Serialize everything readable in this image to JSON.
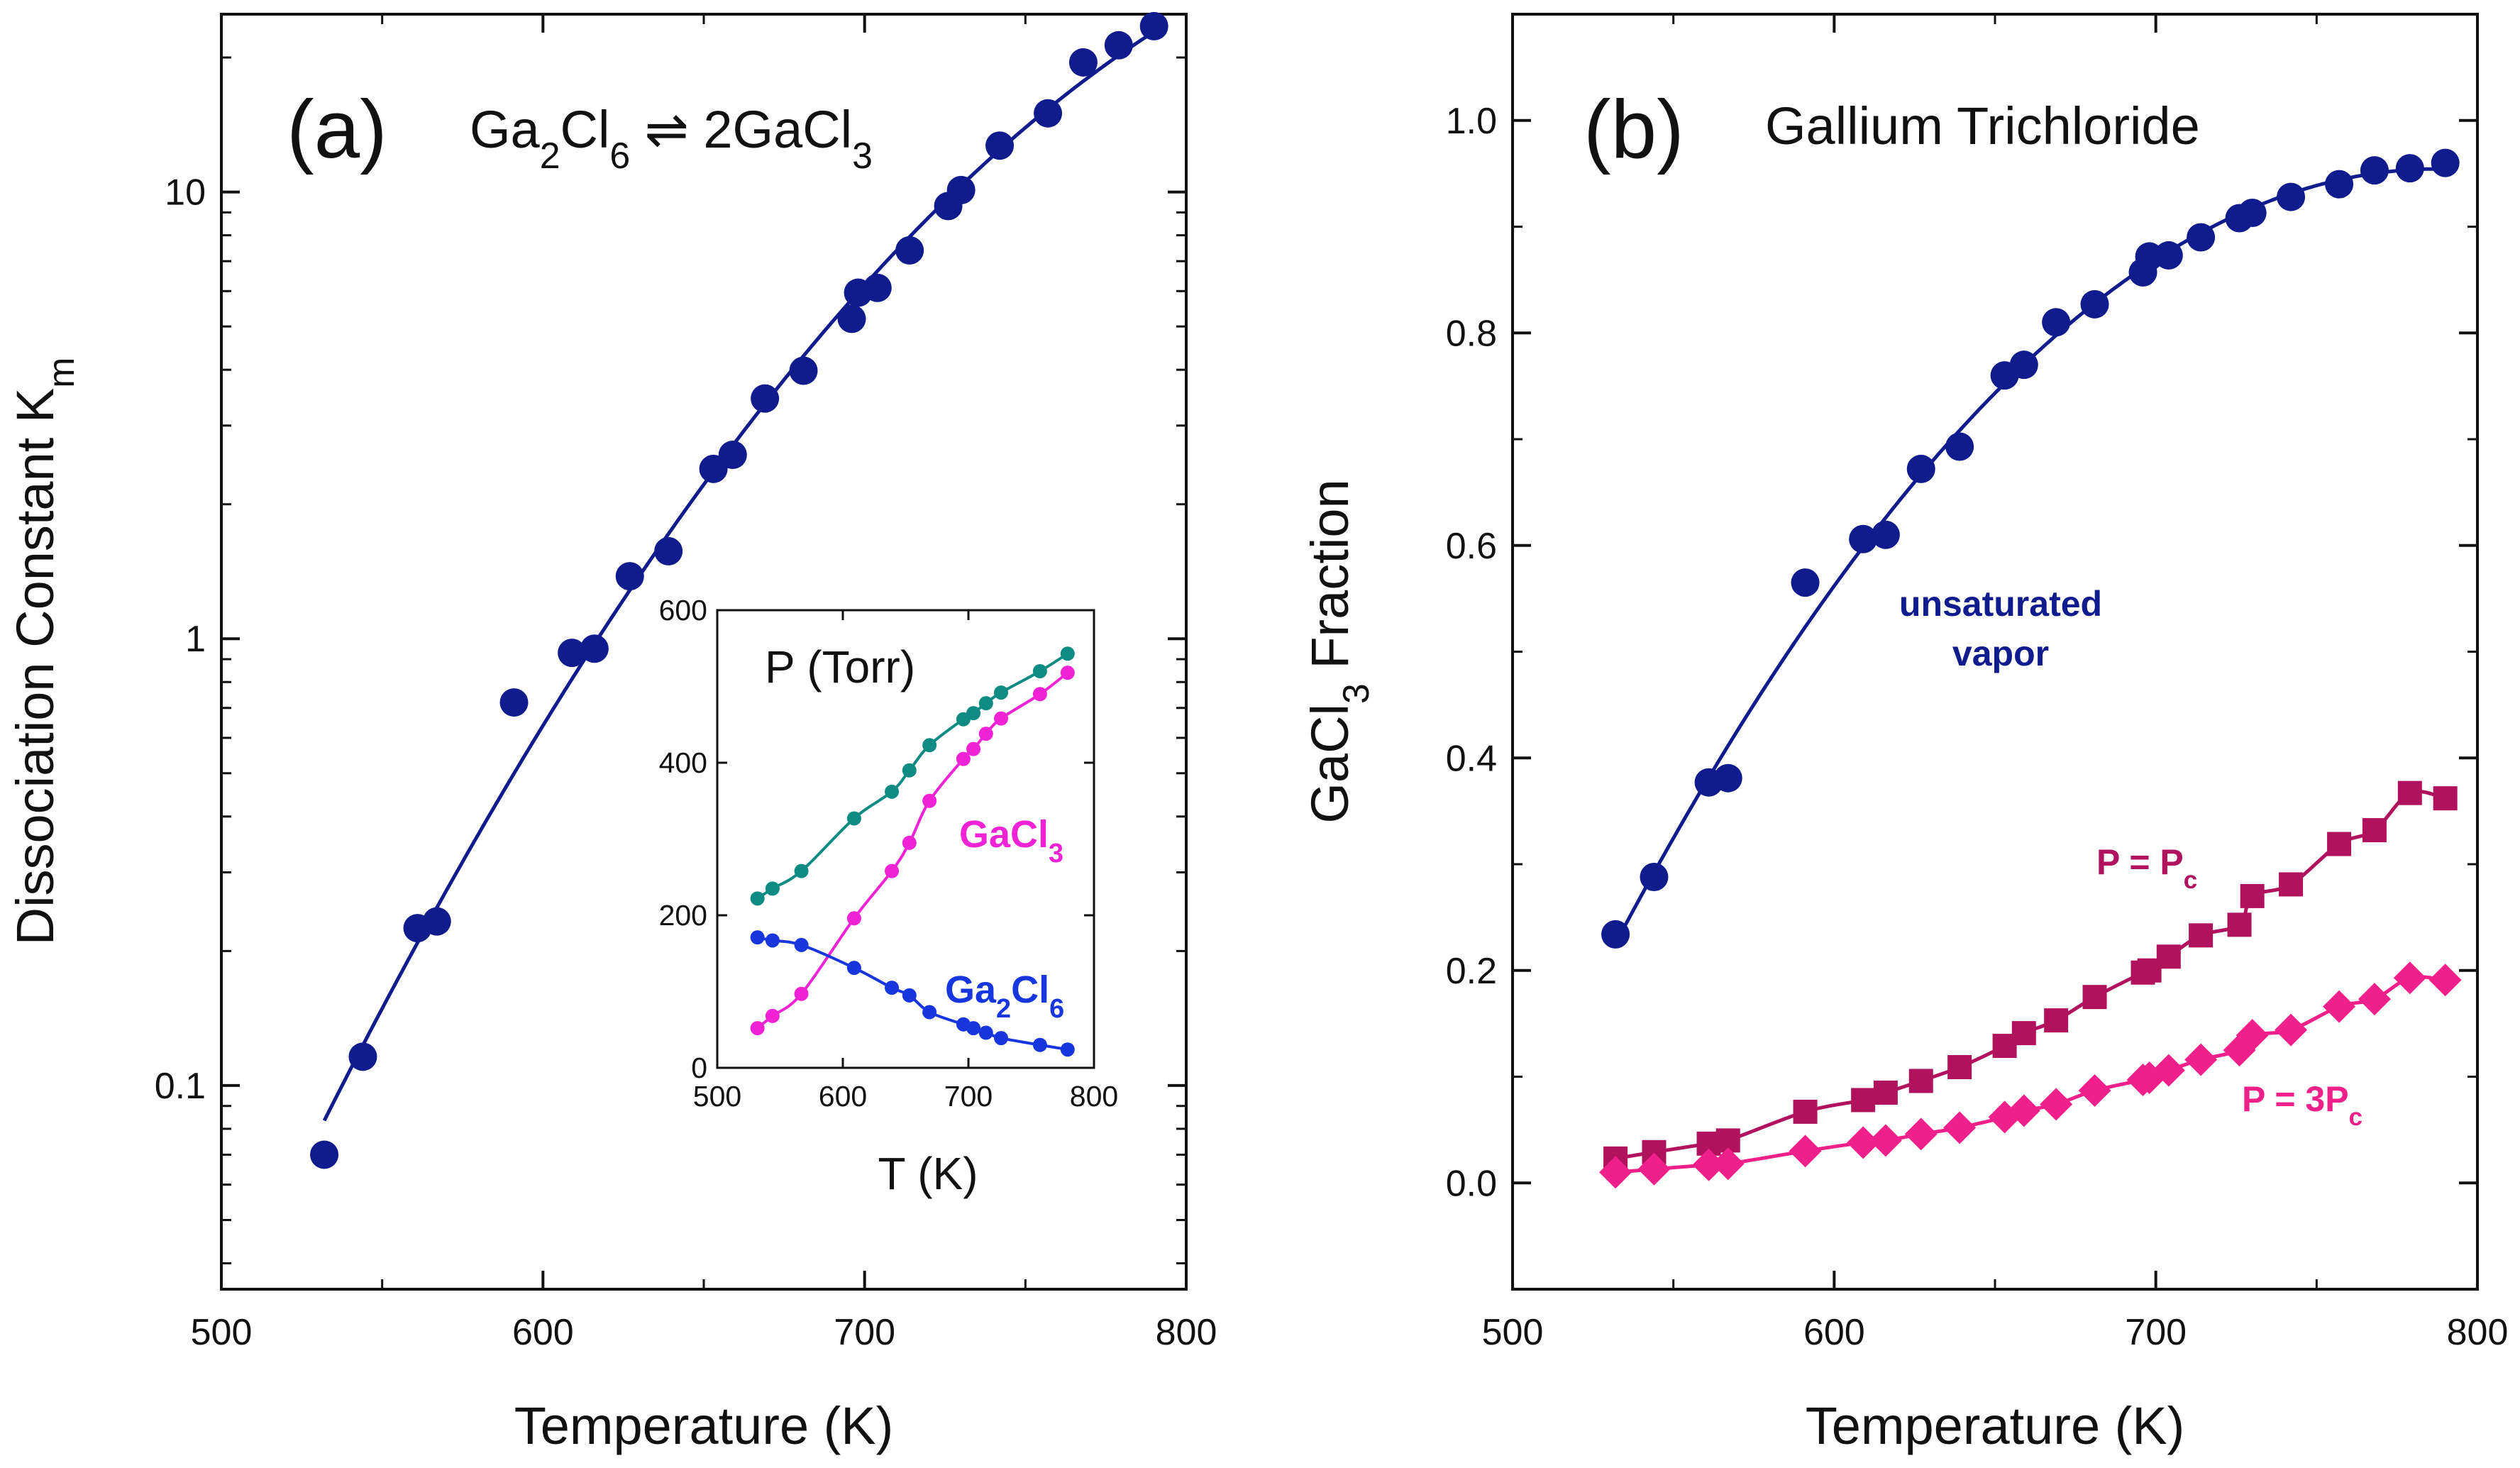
{
  "chart_data": [
    {
      "id": "a",
      "type": "scatter",
      "panel_label": "(a)",
      "title_parts": [
        {
          "t": "Ga",
          "s": "n"
        },
        {
          "t": "2",
          "s": "sub"
        },
        {
          "t": "Cl",
          "s": "n"
        },
        {
          "t": "6",
          "s": "sub"
        },
        {
          "t": " ⇌ 2GaCl",
          "s": "n"
        },
        {
          "t": "3",
          "s": "sub"
        }
      ],
      "xlabel": "Temperature (K)",
      "ylabel_parts": [
        {
          "t": "Dissociation Constant K",
          "s": "n"
        },
        {
          "t": "m",
          "s": "sub"
        }
      ],
      "xlim": [
        500,
        800
      ],
      "ylim": [
        0.035,
        25
      ],
      "yscale": "log",
      "xticks": [
        "500",
        "600",
        "700",
        "800"
      ],
      "yticks": [
        "0.1",
        "1",
        "10"
      ],
      "color": "#101b8e",
      "series": [
        {
          "x": [
            532,
            544,
            561,
            567,
            591,
            609,
            616,
            627,
            639,
            653,
            659,
            669,
            681,
            696,
            698,
            704,
            714,
            726,
            730,
            742,
            757,
            768,
            779,
            790
          ],
          "y": [
            0.07,
            0.116,
            0.225,
            0.233,
            0.72,
            0.93,
            0.95,
            1.38,
            1.57,
            2.4,
            2.58,
            3.45,
            3.98,
            5.2,
            5.95,
            6.1,
            7.4,
            9.3,
            10.1,
            12.7,
            15.0,
            19.5,
            21.3,
            23.5
          ]
        }
      ],
      "inset": {
        "xlabel": "T (K)",
        "title": "P (Torr)",
        "xlim": [
          500,
          800
        ],
        "ylim": [
          0,
          600
        ],
        "xticks": [
          "500",
          "600",
          "700",
          "800"
        ],
        "yticks": [
          "0",
          "200",
          "400",
          "600"
        ],
        "series": [
          {
            "name_parts": [
              {
                "t": "",
                "s": "n"
              }
            ],
            "color": "#0e8c83",
            "x": [
              532,
              544,
              567,
              609,
              639,
              653,
              669,
              696,
              704,
              714,
              726,
              757,
              779
            ],
            "y": [
              222,
              235,
              258,
              327,
              362,
              390,
              423,
              457,
              465,
              478,
              492,
              520,
              543
            ]
          },
          {
            "name_parts": [
              {
                "t": "GaCl",
                "s": "n"
              },
              {
                "t": "3",
                "s": "sub"
              }
            ],
            "color": "#f022d5",
            "x": [
              532,
              544,
              567,
              609,
              639,
              653,
              669,
              696,
              704,
              714,
              726,
              757,
              779
            ],
            "y": [
              52,
              68,
              97,
              196,
              258,
              295,
              350,
              405,
              418,
              438,
              458,
              490,
              518
            ]
          },
          {
            "name_parts": [
              {
                "t": "Ga",
                "s": "n"
              },
              {
                "t": "2",
                "s": "sub"
              },
              {
                "t": "Cl",
                "s": "n"
              },
              {
                "t": "6",
                "s": "sub"
              }
            ],
            "color": "#1736de",
            "x": [
              532,
              544,
              567,
              609,
              639,
              653,
              669,
              696,
              704,
              714,
              726,
              757,
              779
            ],
            "y": [
              171,
              167,
              161,
              131,
              105,
              95,
              73,
              57,
              52,
              46,
              39,
              30,
              24
            ]
          }
        ]
      }
    },
    {
      "id": "b",
      "type": "scatter",
      "panel_label": "(b)",
      "title_parts": [
        {
          "t": "Gallium Trichloride",
          "s": "n"
        }
      ],
      "xlabel": "Temperature (K)",
      "ylabel_parts": [
        {
          "t": "GaCl",
          "s": "n"
        },
        {
          "t": "3",
          "s": "sub"
        },
        {
          "t": " Fraction",
          "s": "n"
        }
      ],
      "xlim": [
        500,
        800
      ],
      "ylim": [
        -0.1,
        1.1
      ],
      "xticks": [
        "500",
        "600",
        "700",
        "800"
      ],
      "yticks": [
        "0.0",
        "0.2",
        "0.4",
        "0.6",
        "0.8",
        "1.0"
      ],
      "series": [
        {
          "name_parts": [
            {
              "t": "unsaturated",
              "s": "n"
            }
          ],
          "name_parts2": [
            {
              "t": "vapor",
              "s": "n"
            }
          ],
          "color": "#101b8e",
          "marker": "circle",
          "x": [
            532,
            544,
            561,
            567,
            591,
            609,
            616,
            627,
            639,
            653,
            659,
            669,
            681,
            696,
            698,
            704,
            714,
            726,
            730,
            742,
            757,
            768,
            779,
            790
          ],
          "y": [
            0.234,
            0.288,
            0.377,
            0.381,
            0.565,
            0.606,
            0.61,
            0.672,
            0.693,
            0.76,
            0.77,
            0.81,
            0.827,
            0.857,
            0.872,
            0.873,
            0.89,
            0.908,
            0.913,
            0.928,
            0.94,
            0.953,
            0.955,
            0.96
          ]
        },
        {
          "name_parts": [
            {
              "t": "P = P",
              "s": "n"
            },
            {
              "t": "c",
              "s": "sub"
            }
          ],
          "color": "#b1125e",
          "marker": "square",
          "x": [
            532,
            544,
            561,
            567,
            591,
            609,
            616,
            627,
            639,
            653,
            659,
            669,
            681,
            696,
            698,
            704,
            714,
            726,
            730,
            742,
            757,
            768,
            779,
            790
          ],
          "y": [
            0.023,
            0.029,
            0.037,
            0.04,
            0.067,
            0.078,
            0.085,
            0.096,
            0.109,
            0.129,
            0.141,
            0.153,
            0.175,
            0.198,
            0.2,
            0.213,
            0.233,
            0.243,
            0.27,
            0.281,
            0.319,
            0.332,
            0.367,
            0.362
          ]
        },
        {
          "name_parts": [
            {
              "t": "P = 3P",
              "s": "n"
            },
            {
              "t": "c",
              "s": "sub"
            }
          ],
          "color": "#f0208a",
          "marker": "diamond",
          "x": [
            532,
            544,
            561,
            567,
            591,
            609,
            616,
            627,
            639,
            653,
            659,
            669,
            681,
            696,
            698,
            704,
            714,
            726,
            730,
            742,
            757,
            768,
            779,
            790
          ],
          "y": [
            0.01,
            0.013,
            0.017,
            0.018,
            0.03,
            0.038,
            0.04,
            0.046,
            0.052,
            0.062,
            0.068,
            0.074,
            0.087,
            0.097,
            0.099,
            0.106,
            0.116,
            0.125,
            0.139,
            0.144,
            0.166,
            0.173,
            0.193,
            0.191
          ]
        }
      ]
    }
  ]
}
